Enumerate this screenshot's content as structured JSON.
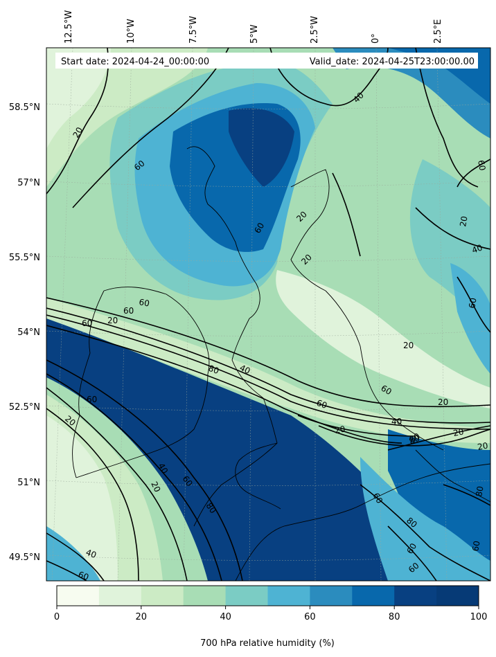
{
  "header": {
    "start_date": "Start date: 2024-04-24_00:00:00",
    "valid_date": "Valid_date: 2024-04-25T23:00:00.00"
  },
  "lon_labels": [
    "12.5°W",
    "10°W",
    "7.5°W",
    "5°W",
    "2.5°W",
    "0°",
    "2.5°E"
  ],
  "lat_labels": [
    "58.5°N",
    "57°N",
    "55.5°N",
    "54°N",
    "52.5°N",
    "51°N",
    "49.5°N"
  ],
  "contour_labels": [
    "20",
    "60",
    "60",
    "60",
    "20",
    "60",
    "40",
    "60",
    "20",
    "60",
    "20",
    "20",
    "80",
    "40",
    "20",
    "40",
    "60",
    "20",
    "80",
    "40",
    "60",
    "20",
    "60",
    "20",
    "40",
    "20",
    "60",
    "80",
    "80",
    "60",
    "60",
    "40",
    "60",
    "80",
    "60",
    "80",
    "60",
    "60",
    "20",
    "20"
  ],
  "colorbar": {
    "label": "700 hPa relative humidity (%)",
    "ticks": [
      "0",
      "20",
      "40",
      "60",
      "80",
      "100"
    ],
    "colors": [
      "#f7fcf0",
      "#e0f3db",
      "#ccebc5",
      "#a8ddb5",
      "#7bccc4",
      "#4eb3d3",
      "#2b8cbe",
      "#0868ac",
      "#084081",
      "#063a76"
    ]
  },
  "palette": {
    "level_0": "#f7fcf0",
    "level_10": "#e0f3db",
    "level_20": "#ccebc5",
    "level_30": "#a8ddb5",
    "level_40": "#7bccc4",
    "level_50": "#4eb3d3",
    "level_60": "#43a2ca",
    "level_70": "#2b8cbe",
    "level_80": "#0868ac",
    "level_90": "#084081"
  }
}
